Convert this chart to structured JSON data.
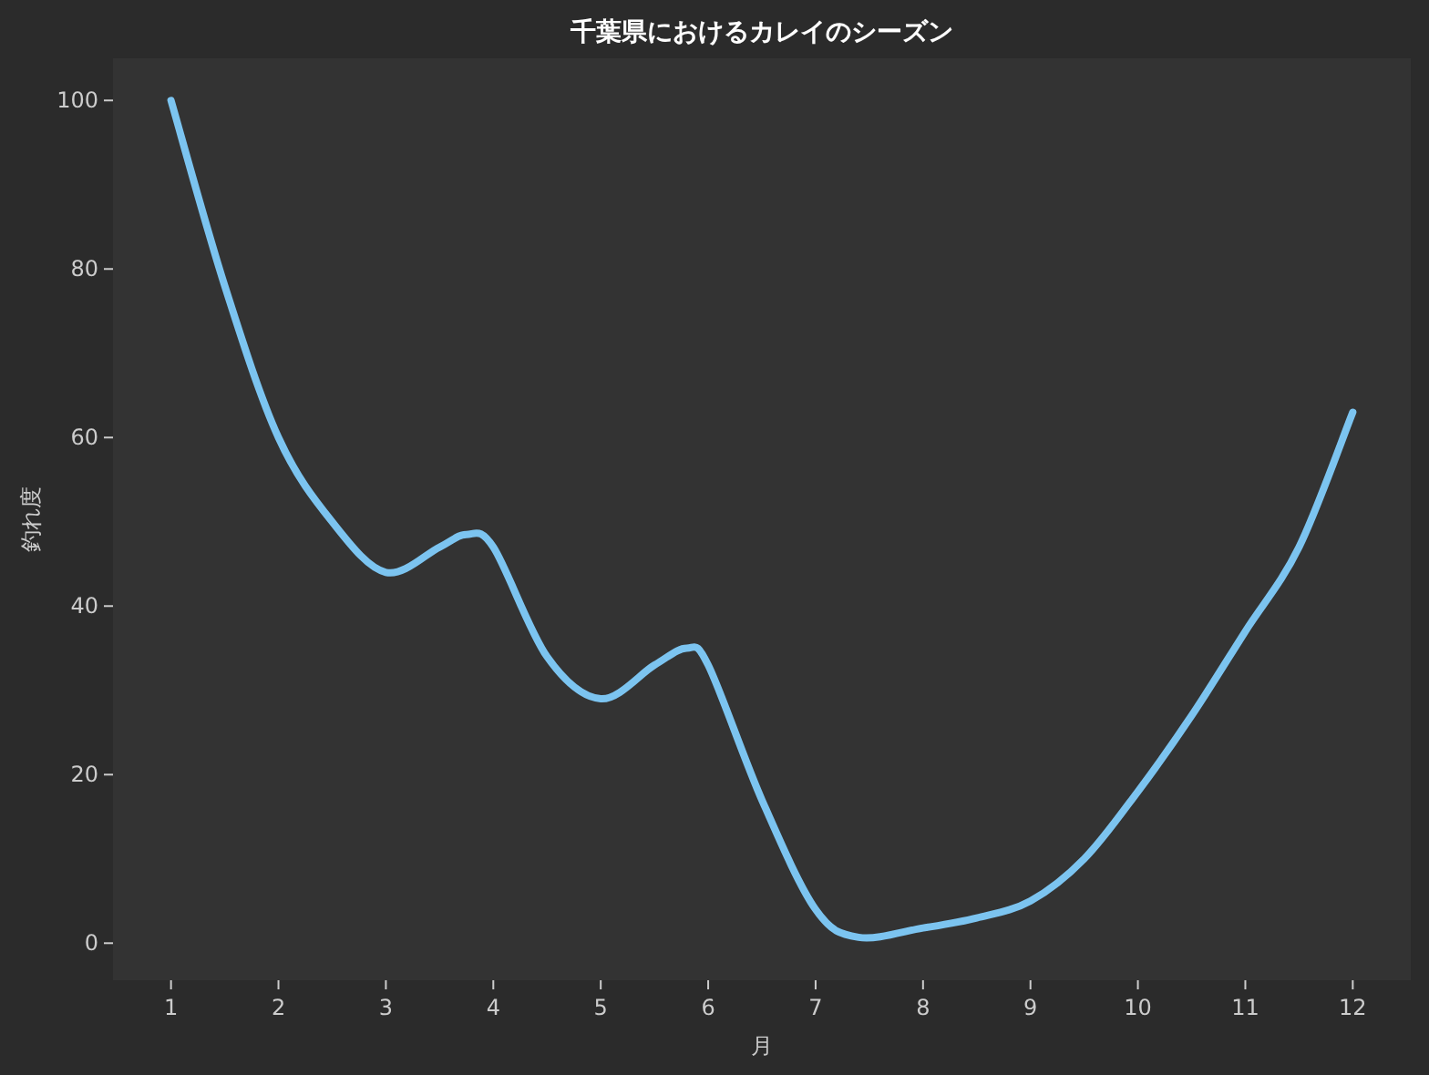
{
  "chart_data": {
    "type": "line",
    "title": "千葉県におけるカレイのシーズン",
    "xlabel": "月",
    "ylabel": "釣れ度",
    "series": [
      {
        "color": "#7cc4f0",
        "x": [
          1,
          1.5,
          2,
          2.5,
          3,
          3.5,
          3.75,
          4,
          4.5,
          5,
          5.5,
          5.8,
          6,
          6.5,
          7,
          7.4,
          8,
          8.5,
          9,
          9.5,
          10,
          10.5,
          11,
          11.5,
          12
        ],
        "values": [
          100,
          78,
          60,
          50,
          44,
          47,
          48.5,
          47,
          34,
          29,
          33,
          35,
          33,
          17,
          4,
          0.7,
          1.8,
          3,
          5,
          10,
          18,
          27,
          37,
          47,
          63
        ]
      }
    ],
    "xlim": [
      0.46,
      12.54
    ],
    "xticks": [
      1,
      2,
      3,
      4,
      5,
      6,
      7,
      8,
      9,
      10,
      11,
      12
    ],
    "ylim": [
      -4.4,
      105
    ],
    "yticks": [
      0,
      20,
      40,
      60,
      80,
      100
    ],
    "grid": false,
    "marker": "none",
    "line_style": "solid"
  }
}
